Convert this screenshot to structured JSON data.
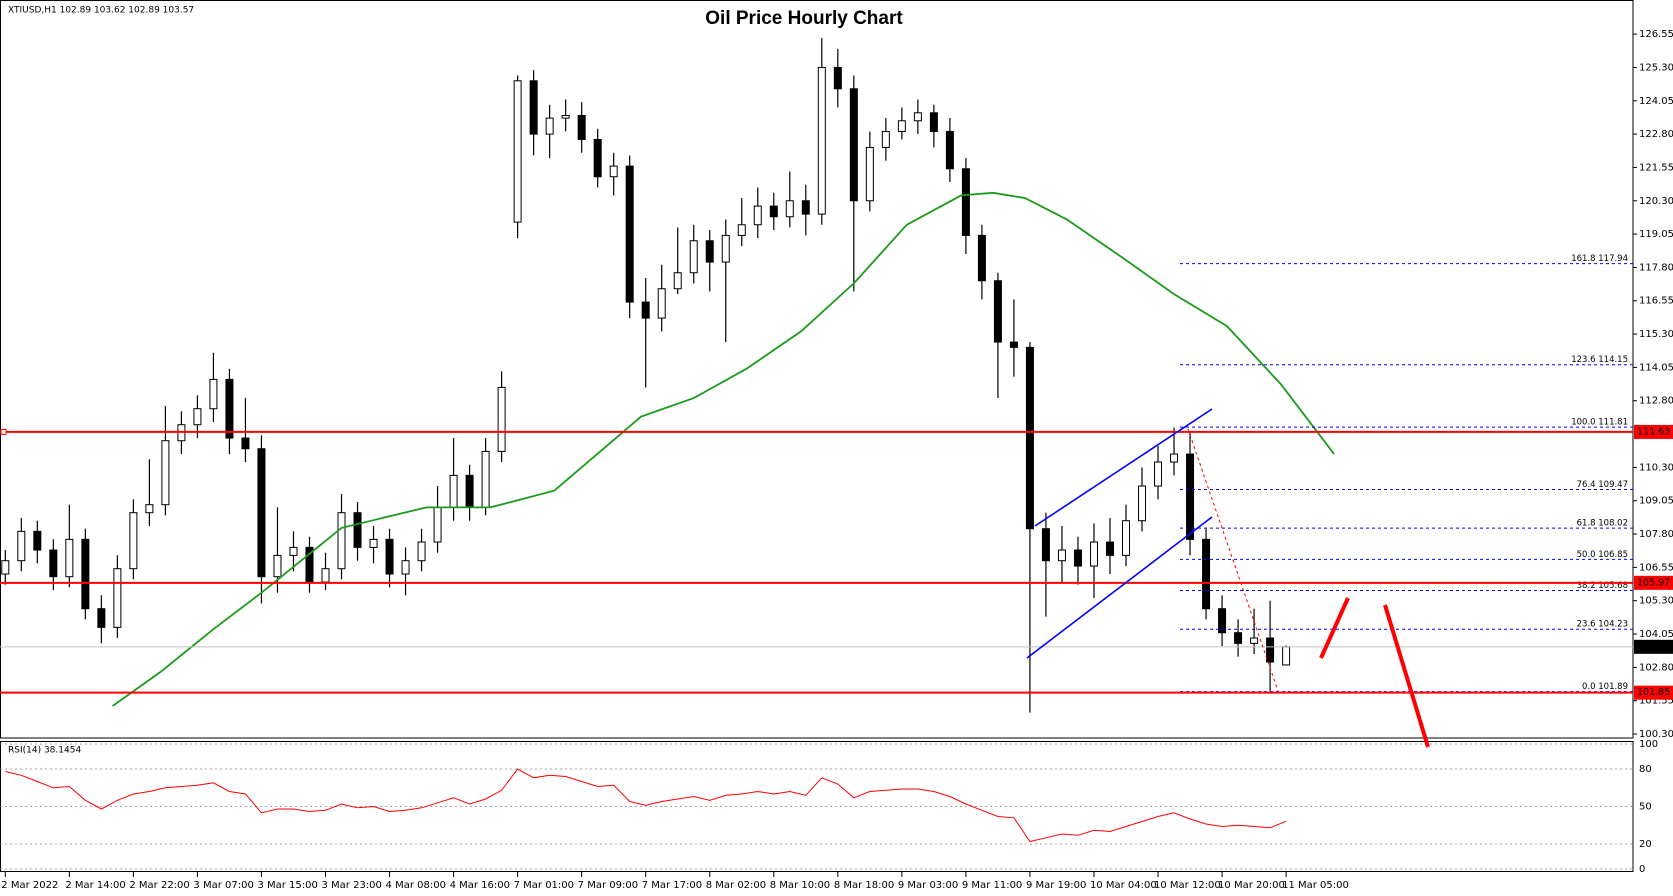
{
  "chart_data": [
    {
      "type": "candlestick",
      "title": "Oil Price Hourly Chart",
      "subtitle": "XTIUSD,H1  102.89 103.62 102.89 103.57",
      "categories": [
        "2 Mar 2022",
        null,
        null,
        null,
        "2 Mar 14:00",
        null,
        null,
        null,
        "2 Mar 22:00",
        null,
        null,
        null,
        "3 Mar 07:00",
        null,
        null,
        null,
        "3 Mar 15:00",
        null,
        null,
        null,
        "3 Mar 23:00",
        null,
        null,
        null,
        "4 Mar 08:00",
        null,
        null,
        null,
        "4 Mar 16:00",
        null,
        null,
        null,
        "7 Mar 01:00",
        null,
        null,
        null,
        "7 Mar 09:00",
        null,
        null,
        null,
        "7 Mar 17:00",
        null,
        null,
        null,
        "8 Mar 02:00",
        null,
        null,
        null,
        "8 Mar 10:00",
        null,
        null,
        null,
        "8 Mar 18:00",
        null,
        null,
        null,
        "9 Mar 03:00",
        null,
        null,
        null,
        "9 Mar 11:00",
        null,
        null,
        null,
        "9 Mar 19:00",
        null,
        null,
        null,
        "10 Mar 04:00",
        null,
        null,
        null,
        "10 Mar 12:00",
        null,
        null,
        null,
        "10 Mar 20:00",
        null,
        null,
        null,
        "11 Mar 05:00"
      ],
      "open": [
        106.3,
        106.8,
        107.9,
        107.2,
        106.2,
        107.6,
        105.0,
        104.3,
        106.5,
        108.6,
        108.9,
        111.3,
        111.9,
        112.5,
        113.6,
        111.4,
        111.0,
        106.2,
        107.0,
        107.3,
        106.0,
        106.5,
        108.6,
        107.3,
        107.6,
        106.3,
        106.8,
        107.5,
        108.8,
        110.0,
        108.8,
        110.9,
        119.5,
        124.8,
        122.8,
        123.4,
        123.5,
        122.6,
        121.2,
        121.6,
        116.5,
        115.9,
        117.0,
        117.6,
        118.8,
        118.0,
        119.0,
        119.4,
        120.1,
        119.7,
        120.3,
        119.8,
        125.3,
        124.5,
        120.3,
        122.3,
        122.9,
        123.3,
        123.6,
        122.9,
        121.5,
        119.0,
        117.3,
        115.0,
        114.8,
        108.0,
        106.8,
        107.2,
        106.6,
        107.5,
        107.0,
        108.3,
        109.6,
        110.5,
        110.8,
        107.6,
        105.0,
        104.1,
        103.7,
        103.9,
        102.89
      ],
      "high": [
        107.2,
        108.4,
        108.3,
        107.6,
        108.9,
        108.0,
        105.5,
        107.0,
        109.1,
        110.6,
        112.6,
        112.4,
        113.0,
        114.6,
        114.0,
        112.9,
        111.5,
        108.8,
        107.9,
        107.7,
        107.1,
        109.3,
        109.0,
        108.1,
        108.0,
        107.3,
        108.0,
        109.6,
        111.4,
        110.4,
        111.4,
        113.9,
        125.0,
        125.2,
        123.9,
        124.1,
        124.0,
        123.0,
        122.1,
        122.0,
        117.4,
        117.9,
        119.3,
        119.4,
        119.2,
        119.6,
        120.4,
        120.8,
        120.6,
        121.4,
        120.9,
        126.4,
        126.0,
        125.0,
        122.9,
        123.4,
        123.8,
        124.1,
        123.9,
        123.4,
        121.9,
        119.4,
        117.6,
        116.6,
        115.0,
        108.6,
        108.1,
        107.7,
        108.2,
        108.4,
        108.9,
        110.3,
        111.1,
        111.8,
        111.6,
        108.0,
        105.5,
        104.6,
        105.0,
        105.3,
        103.62
      ],
      "low": [
        105.9,
        106.4,
        106.7,
        105.7,
        105.8,
        104.6,
        103.7,
        103.9,
        106.1,
        108.1,
        108.5,
        110.8,
        111.4,
        112.0,
        110.8,
        110.5,
        105.2,
        105.6,
        106.4,
        105.6,
        105.7,
        106.1,
        106.8,
        106.7,
        105.8,
        105.5,
        106.4,
        107.1,
        108.3,
        108.3,
        108.5,
        110.5,
        118.9,
        122.0,
        121.9,
        122.9,
        122.1,
        120.8,
        120.5,
        115.9,
        113.3,
        115.4,
        116.8,
        117.2,
        116.9,
        115.0,
        118.6,
        118.9,
        119.2,
        119.3,
        119.0,
        119.4,
        123.8,
        116.9,
        119.9,
        121.8,
        122.6,
        122.8,
        122.3,
        121.0,
        118.3,
        116.6,
        112.9,
        113.7,
        101.1,
        104.7,
        106.0,
        105.9,
        105.4,
        106.3,
        106.6,
        107.9,
        109.1,
        110.0,
        107.0,
        104.6,
        103.6,
        103.2,
        103.3,
        101.9,
        102.89
      ],
      "close": [
        106.8,
        107.9,
        107.2,
        106.2,
        107.6,
        105.0,
        104.3,
        106.5,
        108.6,
        108.9,
        111.3,
        111.9,
        112.5,
        113.6,
        111.4,
        111.0,
        106.2,
        107.0,
        107.3,
        106.0,
        106.5,
        108.6,
        107.3,
        107.6,
        106.3,
        106.8,
        107.5,
        108.8,
        110.0,
        108.8,
        110.9,
        113.3,
        124.8,
        122.8,
        123.4,
        123.5,
        122.6,
        121.2,
        121.6,
        116.5,
        115.9,
        117.0,
        117.6,
        118.8,
        118.0,
        119.0,
        119.4,
        120.1,
        119.7,
        120.3,
        119.8,
        125.3,
        124.5,
        120.3,
        122.3,
        122.9,
        123.3,
        123.6,
        122.9,
        121.5,
        119.0,
        117.3,
        115.0,
        114.8,
        108.0,
        106.8,
        107.2,
        106.6,
        107.5,
        107.0,
        108.3,
        109.6,
        110.5,
        110.8,
        107.6,
        105.0,
        104.1,
        103.7,
        103.9,
        103.0,
        103.57
      ],
      "up_color": "#ffffff",
      "down_color": "#000000",
      "ylim": [
        100.15,
        127.83
      ],
      "yticks": [
        {
          "value": 126.55,
          "label": "126.55"
        },
        {
          "value": 125.3,
          "label": "125.30"
        },
        {
          "value": 124.05,
          "label": "124.05"
        },
        {
          "value": 122.8,
          "label": "122.80"
        },
        {
          "value": 121.55,
          "label": "121.55"
        },
        {
          "value": 120.3,
          "label": "120.30"
        },
        {
          "value": 119.05,
          "label": "119.05"
        },
        {
          "value": 117.8,
          "label": "117.80"
        },
        {
          "value": 116.55,
          "label": "116.55"
        },
        {
          "value": 115.3,
          "label": "115.30"
        },
        {
          "value": 114.05,
          "label": "114.05"
        },
        {
          "value": 112.8,
          "label": "112.80"
        },
        {
          "value": 110.3,
          "label": "110.30"
        },
        {
          "value": 109.05,
          "label": "109.05"
        },
        {
          "value": 107.8,
          "label": "107.80"
        },
        {
          "value": 106.55,
          "label": "106.55"
        },
        {
          "value": 105.3,
          "label": "105.30"
        },
        {
          "value": 104.05,
          "label": "104.05"
        },
        {
          "value": 102.8,
          "label": "102.80"
        },
        {
          "value": 101.55,
          "label": "101.55"
        },
        {
          "value": 100.3,
          "label": "100.30"
        }
      ],
      "ma": {
        "color": "#1a9a1a",
        "x": [
          6.7,
          9.7,
          13,
          16,
          21,
          26.3,
          30.3,
          34.3,
          39.7,
          43,
          46.3,
          49.7,
          53,
          56.3,
          59.7,
          61.7,
          63.7,
          66.3,
          69.7,
          73,
          76.3,
          79.7,
          83
        ],
        "values": [
          101.35,
          102.63,
          104.23,
          105.6,
          108.03,
          108.8,
          108.8,
          109.43,
          112.2,
          112.9,
          114.0,
          115.4,
          117.2,
          119.4,
          120.5,
          120.6,
          120.4,
          119.6,
          118.2,
          116.8,
          115.6,
          113.4,
          110.8
        ]
      },
      "levels": [
        {
          "value": 111.63,
          "color": "#ff0000",
          "label_color": "#ff0000"
        },
        {
          "value": 105.97,
          "color": "#ff0000",
          "label_color": "#ff0000"
        },
        {
          "value": 103.57,
          "color": "#c0c0c0",
          "label_color": "#000000"
        },
        {
          "value": 101.85,
          "color": "#ff0000",
          "label_color": "#ff0000"
        }
      ],
      "fib_color": "#0000ff",
      "fib": [
        {
          "label": "161.8 117.94",
          "value": 117.94
        },
        {
          "label": "123.6 114.15",
          "value": 114.15
        },
        {
          "label": "100.0 111.81",
          "value": 111.81
        },
        {
          "label": "76.4 109.47",
          "value": 109.47
        },
        {
          "label": "61.8 108.02",
          "value": 108.02
        },
        {
          "label": "50.0 106.85",
          "value": 106.85
        },
        {
          "label": "38.2 105.68",
          "value": 105.68
        },
        {
          "label": "23.6 104.23",
          "value": 104.23
        },
        {
          "label": "0.0 101.89",
          "value": 101.89
        }
      ]
    },
    {
      "type": "line",
      "title": "RSI(14) 38.1454",
      "color": "#ff0000",
      "values": [
        78,
        75,
        70,
        65,
        66,
        55,
        48,
        55,
        60,
        62,
        65,
        66,
        67,
        69,
        62,
        60,
        45,
        48,
        48,
        46,
        47,
        52,
        49,
        50,
        46,
        47,
        49,
        53,
        57,
        52,
        56,
        63,
        80,
        73,
        75,
        74,
        70,
        66,
        67,
        54,
        51,
        54,
        56,
        58,
        55,
        59,
        60,
        62,
        60,
        62,
        59,
        73,
        68,
        57,
        62,
        63,
        64,
        64,
        62,
        58,
        52,
        47,
        42,
        41,
        22,
        25,
        28,
        27,
        31,
        30,
        34,
        38,
        42,
        45,
        40,
        36,
        34,
        35,
        34,
        33,
        38.1454
      ],
      "ylim": [
        0,
        100
      ],
      "yticks": [
        0,
        20,
        50,
        80,
        100
      ],
      "grid": true
    }
  ]
}
